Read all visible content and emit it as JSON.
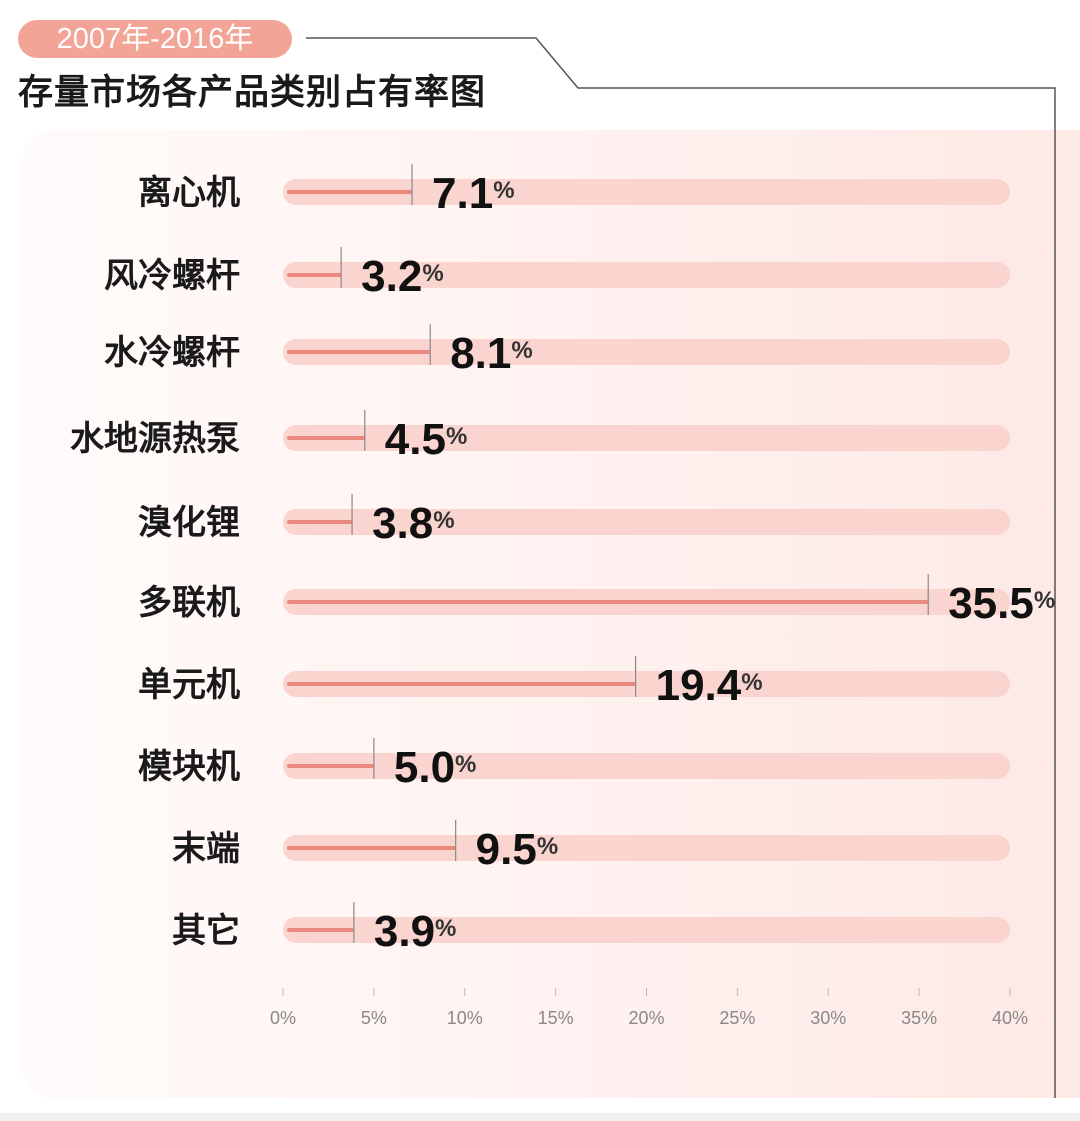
{
  "header": {
    "badge": "2007年-2016年",
    "title": "存量市场各产品类别占有率图"
  },
  "colors": {
    "badge": "#f2a596",
    "track": "#fad4ce",
    "bar": "#e8897c",
    "marker": "#888888"
  },
  "chart_data": {
    "type": "bar",
    "orientation": "horizontal",
    "title": "存量市场各产品类别占有率图",
    "subtitle": "2007年-2016年",
    "categories": [
      "离心机",
      "风冷螺杆",
      "水冷螺杆",
      "水地源热泵",
      "溴化锂",
      "多联机",
      "单元机",
      "模块机",
      "末端",
      "其它"
    ],
    "values": [
      7.1,
      3.2,
      8.1,
      4.5,
      3.8,
      35.5,
      19.4,
      5.0,
      9.5,
      3.9
    ],
    "value_labels": [
      "7.1",
      "3.2",
      "8.1",
      "4.5",
      "3.8",
      "35.5",
      "19.4",
      "5.0",
      "9.5",
      "3.9"
    ],
    "value_suffix": "%",
    "xlim": [
      0,
      40
    ],
    "xticks": [
      0,
      5,
      10,
      15,
      20,
      25,
      30,
      35,
      40
    ],
    "xtick_labels": [
      "0%",
      "5%",
      "10%",
      "15%",
      "20%",
      "25%",
      "30%",
      "35%",
      "40%"
    ],
    "grid": false,
    "legend": "none"
  }
}
